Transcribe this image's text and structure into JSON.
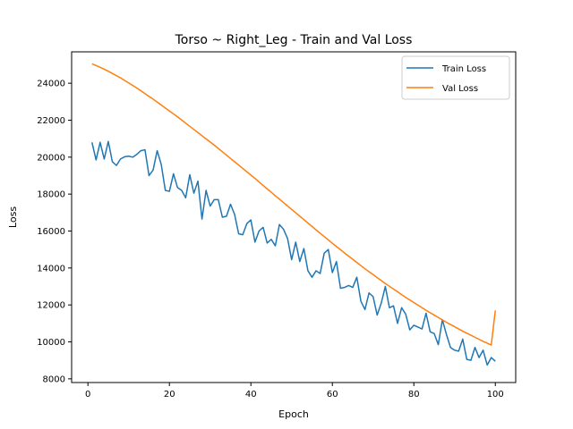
{
  "chart_data": {
    "type": "line",
    "title": "Torso ~ Right_Leg - Train and Val Loss",
    "xlabel": "Epoch",
    "ylabel": "Loss",
    "xlim": [
      -4,
      105
    ],
    "ylim": [
      7800,
      25700
    ],
    "xticks": [
      0,
      20,
      40,
      60,
      80,
      100
    ],
    "yticks": [
      8000,
      10000,
      12000,
      14000,
      16000,
      18000,
      20000,
      22000,
      24000
    ],
    "grid": false,
    "legend_position": "top-right",
    "x": [
      1,
      2,
      3,
      4,
      5,
      6,
      7,
      8,
      9,
      10,
      11,
      12,
      13,
      14,
      15,
      16,
      17,
      18,
      19,
      20,
      21,
      22,
      23,
      24,
      25,
      26,
      27,
      28,
      29,
      30,
      31,
      32,
      33,
      34,
      35,
      36,
      37,
      38,
      39,
      40,
      41,
      42,
      43,
      44,
      45,
      46,
      47,
      48,
      49,
      50,
      51,
      52,
      53,
      54,
      55,
      56,
      57,
      58,
      59,
      60,
      61,
      62,
      63,
      64,
      65,
      66,
      67,
      68,
      69,
      70,
      71,
      72,
      73,
      74,
      75,
      76,
      77,
      78,
      79,
      80,
      81,
      82,
      83,
      84,
      85,
      86,
      87,
      88,
      89,
      90,
      91,
      92,
      93,
      94,
      95,
      96,
      97,
      98,
      99,
      100
    ],
    "series": [
      {
        "name": "Train Loss",
        "color": "#1f77b4",
        "values": [
          20800,
          19850,
          20800,
          19900,
          20850,
          19750,
          19550,
          19900,
          20020,
          20050,
          20000,
          20150,
          20350,
          20400,
          19000,
          19300,
          20350,
          19600,
          18200,
          18150,
          19100,
          18350,
          18200,
          17800,
          19050,
          18050,
          18700,
          16650,
          18200,
          17350,
          17700,
          17700,
          16750,
          16800,
          17450,
          16900,
          15850,
          15800,
          16400,
          16600,
          15400,
          16000,
          16200,
          15350,
          15550,
          15200,
          16350,
          16100,
          15600,
          14450,
          15400,
          14350,
          15050,
          13850,
          13500,
          13850,
          13700,
          14800,
          15000,
          13750,
          14350,
          12900,
          12950,
          13050,
          12950,
          13500,
          12200,
          11750,
          12650,
          12450,
          11450,
          12100,
          13000,
          11850,
          11950,
          11000,
          11850,
          11500,
          10650,
          10900,
          10800,
          10700,
          11550,
          10550,
          10450,
          9850,
          11200,
          10400,
          9700,
          9550,
          9500,
          10150,
          9050,
          9000,
          9700,
          9150,
          9550,
          8750,
          9150,
          8950
        ]
      },
      {
        "name": "Val Loss",
        "color": "#ff7f0e",
        "values": [
          25050,
          24960,
          24860,
          24760,
          24650,
          24530,
          24410,
          24290,
          24150,
          24020,
          23880,
          23740,
          23590,
          23440,
          23290,
          23140,
          22980,
          22820,
          22660,
          22500,
          22340,
          22180,
          22010,
          21840,
          21670,
          21500,
          21330,
          21160,
          20990,
          20820,
          20650,
          20470,
          20290,
          20110,
          19930,
          19750,
          19570,
          19390,
          19210,
          19030,
          18850,
          18660,
          18470,
          18280,
          18100,
          17910,
          17730,
          17540,
          17360,
          17170,
          16990,
          16800,
          16620,
          16430,
          16250,
          16060,
          15880,
          15700,
          15520,
          15340,
          15160,
          14990,
          14810,
          14640,
          14470,
          14300,
          14130,
          13960,
          13800,
          13640,
          13480,
          13320,
          13160,
          13010,
          12860,
          12710,
          12560,
          12410,
          12270,
          12130,
          11990,
          11850,
          11710,
          11580,
          11450,
          11320,
          11190,
          11060,
          10940,
          10820,
          10700,
          10580,
          10470,
          10360,
          10250,
          10140,
          10030,
          9930,
          9830,
          11700
        ]
      }
    ]
  }
}
